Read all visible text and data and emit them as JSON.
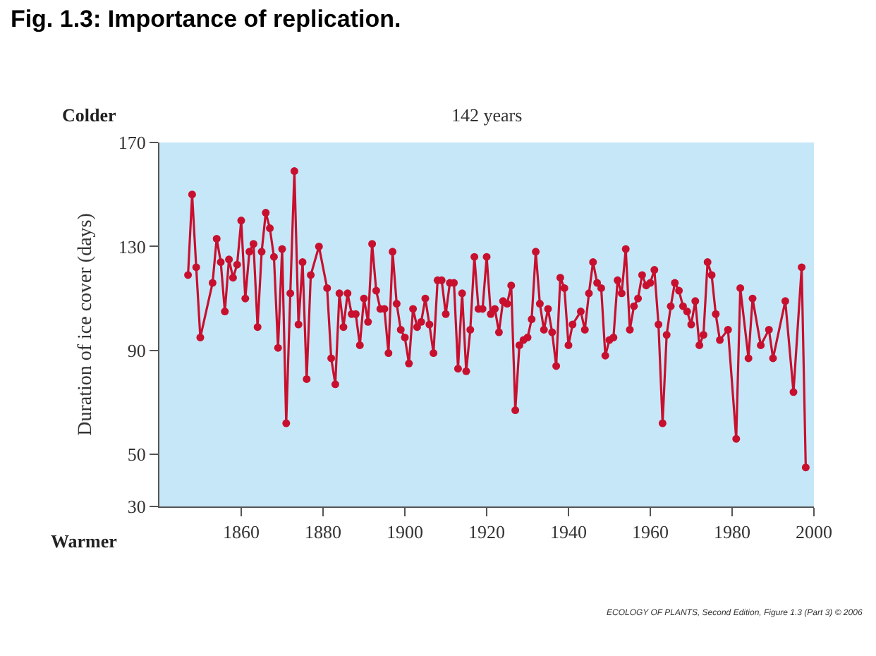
{
  "chart_data": {
    "type": "line",
    "title": "Fig. 1.3: Importance of replication.",
    "ylabel": "Duration of ice cover (days)",
    "annotations": [
      "Colder",
      "142 years",
      "Warmer",
      "ECOLOGY OF PLANTS, Second Edition, Figure 1.3 (Part 3) © 2006"
    ],
    "x": [
      1847,
      1848,
      1849,
      1850,
      1853,
      1854,
      1855,
      1856,
      1857,
      1858,
      1859,
      1860,
      1861,
      1862,
      1863,
      1864,
      1865,
      1866,
      1867,
      1868,
      1869,
      1870,
      1871,
      1872,
      1873,
      1874,
      1875,
      1876,
      1877,
      1879,
      1881,
      1882,
      1883,
      1884,
      1885,
      1886,
      1887,
      1888,
      1889,
      1890,
      1891,
      1892,
      1893,
      1894,
      1895,
      1896,
      1897,
      1898,
      1899,
      1900,
      1901,
      1902,
      1903,
      1904,
      1905,
      1906,
      1907,
      1908,
      1909,
      1910,
      1911,
      1912,
      1913,
      1914,
      1915,
      1916,
      1917,
      1918,
      1919,
      1920,
      1921,
      1922,
      1923,
      1924,
      1925,
      1926,
      1927,
      1928,
      1929,
      1930,
      1931,
      1932,
      1933,
      1934,
      1935,
      1936,
      1937,
      1938,
      1939,
      1940,
      1941,
      1943,
      1944,
      1945,
      1946,
      1947,
      1948,
      1949,
      1950,
      1951,
      1952,
      1953,
      1954,
      1955,
      1956,
      1957,
      1958,
      1959,
      1960,
      1961,
      1962,
      1963,
      1964,
      1965,
      1966,
      1967,
      1968,
      1969,
      1970,
      1971,
      1972,
      1973,
      1974,
      1975,
      1976,
      1977,
      1979,
      1981,
      1982,
      1984,
      1985,
      1987,
      1989,
      1990,
      1993,
      1995,
      1997,
      1998
    ],
    "series": [
      {
        "color": "#c8102e",
        "values": [
          119,
          150,
          122,
          95,
          116,
          133,
          124,
          105,
          125,
          118,
          123,
          140,
          110,
          128,
          131,
          99,
          128,
          143,
          137,
          126,
          91,
          129,
          62,
          112,
          159,
          100,
          124,
          79,
          119,
          130,
          114,
          87,
          77,
          112,
          99,
          112,
          104,
          104,
          92,
          110,
          101,
          131,
          113,
          106,
          106,
          89,
          128,
          108,
          98,
          95,
          85,
          106,
          99,
          101,
          110,
          100,
          89,
          117,
          117,
          104,
          116,
          116,
          83,
          112,
          82,
          98,
          126,
          106,
          106,
          126,
          104,
          106,
          97,
          109,
          108,
          115,
          67,
          92,
          94,
          95,
          102,
          128,
          108,
          98,
          106,
          97,
          84,
          118,
          114,
          92,
          100,
          105,
          98,
          112,
          124,
          116,
          114,
          88,
          94,
          95,
          117,
          112,
          129,
          98,
          107,
          110,
          119,
          115,
          116,
          121,
          100,
          62,
          96,
          107,
          116,
          113,
          107,
          105,
          100,
          109,
          92,
          96,
          124,
          119,
          104,
          94,
          98,
          56,
          114,
          87,
          110,
          92,
          98,
          87,
          109,
          74,
          122,
          45
        ]
      }
    ],
    "xlim": [
      1840,
      2000
    ],
    "xticks": [
      1860,
      1880,
      1900,
      1920,
      1940,
      1960,
      1980,
      2000
    ],
    "ylim": [
      30,
      170
    ],
    "yticks": [
      30,
      50,
      90,
      130,
      170
    ],
    "grid": false,
    "marker": "circle",
    "line_style": "solid"
  }
}
